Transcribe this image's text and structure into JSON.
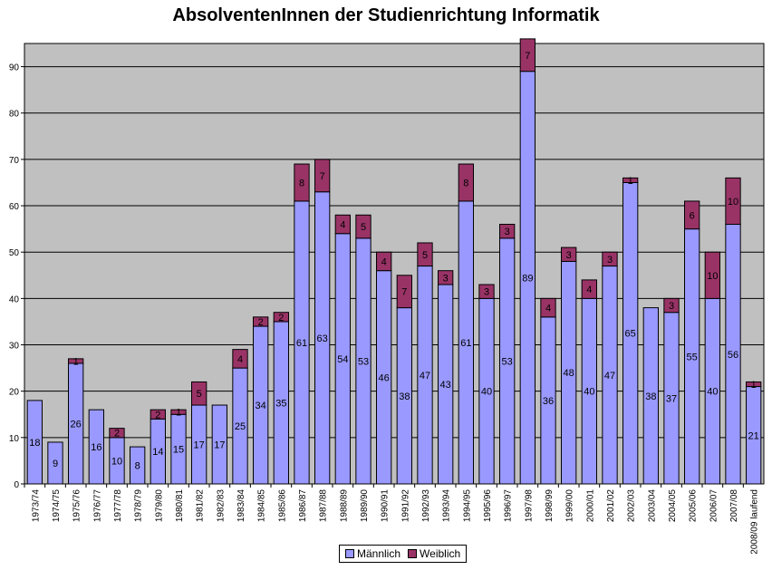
{
  "chart_data": {
    "type": "bar",
    "stacked": true,
    "title": "AbsolventenInnen der Studienrichtung Informatik",
    "xlabel": "",
    "ylabel": "",
    "ylim": [
      0,
      95
    ],
    "yticks": [
      0,
      10,
      20,
      30,
      40,
      50,
      60,
      70,
      80,
      90
    ],
    "grid": true,
    "legend_position": "bottom",
    "categories": [
      "1973/74",
      "1974/75",
      "1975/76",
      "1976/77",
      "1977/78",
      "1978/79",
      "1979/80",
      "1980/81",
      "1981/82",
      "1982/83",
      "1983/84",
      "1984/85",
      "1985/86",
      "1986/87",
      "1987/88",
      "1988/89",
      "1989/90",
      "1990/91",
      "1991/92",
      "1992/93",
      "1993/94",
      "1994/95",
      "1995/96",
      "1996/97",
      "1997/98",
      "1998/99",
      "1999/00",
      "2000/01",
      "2001/02",
      "2002/03",
      "2003/04",
      "2004/05",
      "2005/06",
      "2006/07",
      "2007/08",
      "2008/09 laufend"
    ],
    "series": [
      {
        "name": "Männlich",
        "color": "#9999ff",
        "values": [
          18,
          9,
          26,
          16,
          10,
          8,
          14,
          15,
          17,
          17,
          25,
          34,
          35,
          61,
          63,
          54,
          53,
          46,
          38,
          47,
          43,
          61,
          40,
          53,
          89,
          36,
          48,
          40,
          47,
          65,
          38,
          37,
          55,
          40,
          56,
          21
        ],
        "labels": [
          "18",
          "9",
          "26",
          "16",
          "10",
          "8",
          "14",
          "15",
          "17",
          "17",
          "25",
          "34",
          "35",
          "61",
          "63",
          "54",
          "53",
          "46",
          "38",
          "47",
          "43",
          "61",
          "40",
          "53",
          "89",
          "36",
          "48",
          "40",
          "47",
          "65",
          "38",
          "37",
          "55",
          "40",
          "56",
          "21"
        ]
      },
      {
        "name": "Weiblich",
        "color": "#993366",
        "values": [
          0,
          0,
          1,
          0,
          2,
          0,
          2,
          1,
          5,
          0,
          4,
          2,
          2,
          8,
          7,
          4,
          5,
          4,
          7,
          5,
          3,
          8,
          3,
          3,
          7,
          4,
          3,
          4,
          3,
          1,
          0,
          3,
          6,
          10,
          10,
          1
        ],
        "labels": [
          "",
          "",
          "1",
          "",
          "2",
          "",
          "2",
          "1",
          "5",
          "",
          "4",
          "2",
          "2",
          "8",
          "7",
          "4",
          "5",
          "4",
          "7",
          "5",
          "3",
          "8",
          "3",
          "3",
          "7",
          "4",
          "3",
          "4",
          "3",
          "1",
          "",
          "3",
          "6",
          "10",
          "10",
          "1"
        ]
      }
    ]
  },
  "legend": {
    "male_label": "Männlich",
    "female_label": "Weiblich",
    "male_color": "#9999ff",
    "female_color": "#993366"
  },
  "plot_background": "#c0c0c0"
}
